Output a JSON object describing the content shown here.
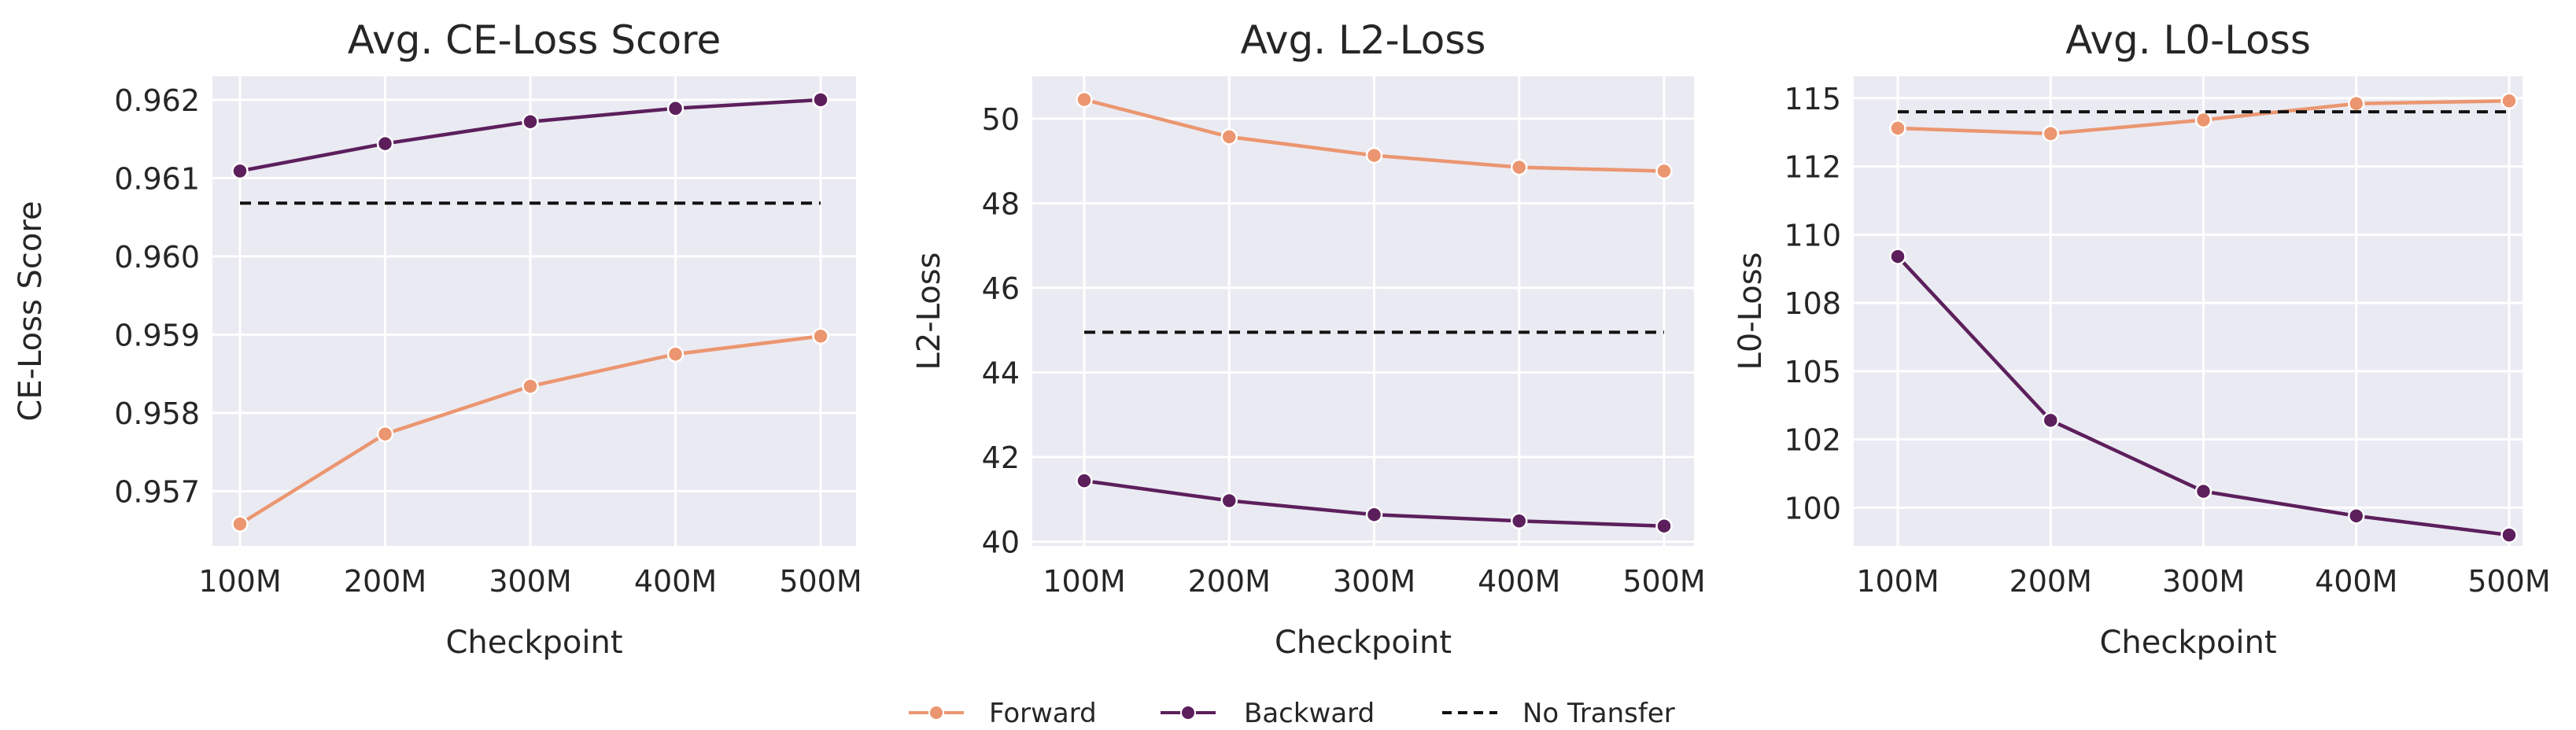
{
  "colors": {
    "forward": "#EB9670",
    "backward": "#5C1F5C",
    "no_transfer": "#111111",
    "panel_bg": "#EAEAF2",
    "grid": "#FFFFFF"
  },
  "legend": {
    "forward": "Forward",
    "backward": "Backward",
    "no_transfer": "No Transfer"
  },
  "chart_data": [
    {
      "type": "line",
      "title": "Avg. CE-Loss Score",
      "xlabel": "Checkpoint",
      "ylabel": "CE-Loss Score",
      "categories": [
        "100M",
        "200M",
        "300M",
        "400M",
        "500M"
      ],
      "yticks": [
        0.957,
        0.958,
        0.959,
        0.96,
        0.961,
        0.962
      ],
      "ytick_labels": [
        "0.957",
        "0.958",
        "0.959",
        "0.960",
        "0.961",
        "0.962"
      ],
      "ylim": [
        0.9563,
        0.9623
      ],
      "grid": true,
      "series": [
        {
          "name": "Forward",
          "key": "forward",
          "values": [
            0.95658,
            0.95773,
            0.95834,
            0.95875,
            0.95898
          ],
          "style": "solid-marker"
        },
        {
          "name": "Backward",
          "key": "backward",
          "values": [
            0.96109,
            0.96144,
            0.96172,
            0.96189,
            0.962
          ],
          "style": "solid-marker"
        },
        {
          "name": "No Transfer",
          "key": "no_transfer",
          "values": [
            0.96068,
            0.96068,
            0.96068,
            0.96068,
            0.96068
          ],
          "style": "dashed"
        }
      ]
    },
    {
      "type": "line",
      "title": "Avg. L2-Loss",
      "xlabel": "Checkpoint",
      "ylabel": "L2-Loss",
      "categories": [
        "100M",
        "200M",
        "300M",
        "400M",
        "500M"
      ],
      "yticks": [
        40,
        42,
        44,
        46,
        48,
        50
      ],
      "ytick_labels": [
        "40",
        "42",
        "44",
        "46",
        "48",
        "50"
      ],
      "ylim": [
        39.9,
        51.0
      ],
      "grid": true,
      "series": [
        {
          "name": "Forward",
          "key": "forward",
          "values": [
            50.45,
            49.57,
            49.13,
            48.85,
            48.76
          ],
          "style": "solid-marker"
        },
        {
          "name": "Backward",
          "key": "backward",
          "values": [
            41.44,
            40.97,
            40.64,
            40.49,
            40.37
          ],
          "style": "solid-marker"
        },
        {
          "name": "No Transfer",
          "key": "no_transfer",
          "values": [
            44.95,
            44.95,
            44.95,
            44.95,
            44.95
          ],
          "style": "dashed"
        }
      ]
    },
    {
      "type": "line",
      "title": "Avg. L0-Loss",
      "xlabel": "Checkpoint",
      "ylabel": "L0-Loss",
      "categories": [
        "100M",
        "200M",
        "300M",
        "400M",
        "500M"
      ],
      "yticks": [
        100,
        102.5,
        105,
        107.5,
        110,
        112.5,
        115
      ],
      "ytick_labels": [
        "100",
        "102",
        "105",
        "108",
        "110",
        "112",
        "115"
      ],
      "ylim": [
        98.6,
        115.8
      ],
      "grid": true,
      "series": [
        {
          "name": "Forward",
          "key": "forward",
          "values": [
            113.9,
            113.7,
            114.2,
            114.8,
            114.9
          ],
          "style": "solid-marker"
        },
        {
          "name": "Backward",
          "key": "backward",
          "values": [
            109.2,
            103.2,
            100.6,
            99.7,
            99.0
          ],
          "style": "solid-marker"
        },
        {
          "name": "No Transfer",
          "key": "no_transfer",
          "values": [
            114.5,
            114.5,
            114.5,
            114.5,
            114.5
          ],
          "style": "dashed"
        }
      ]
    }
  ]
}
